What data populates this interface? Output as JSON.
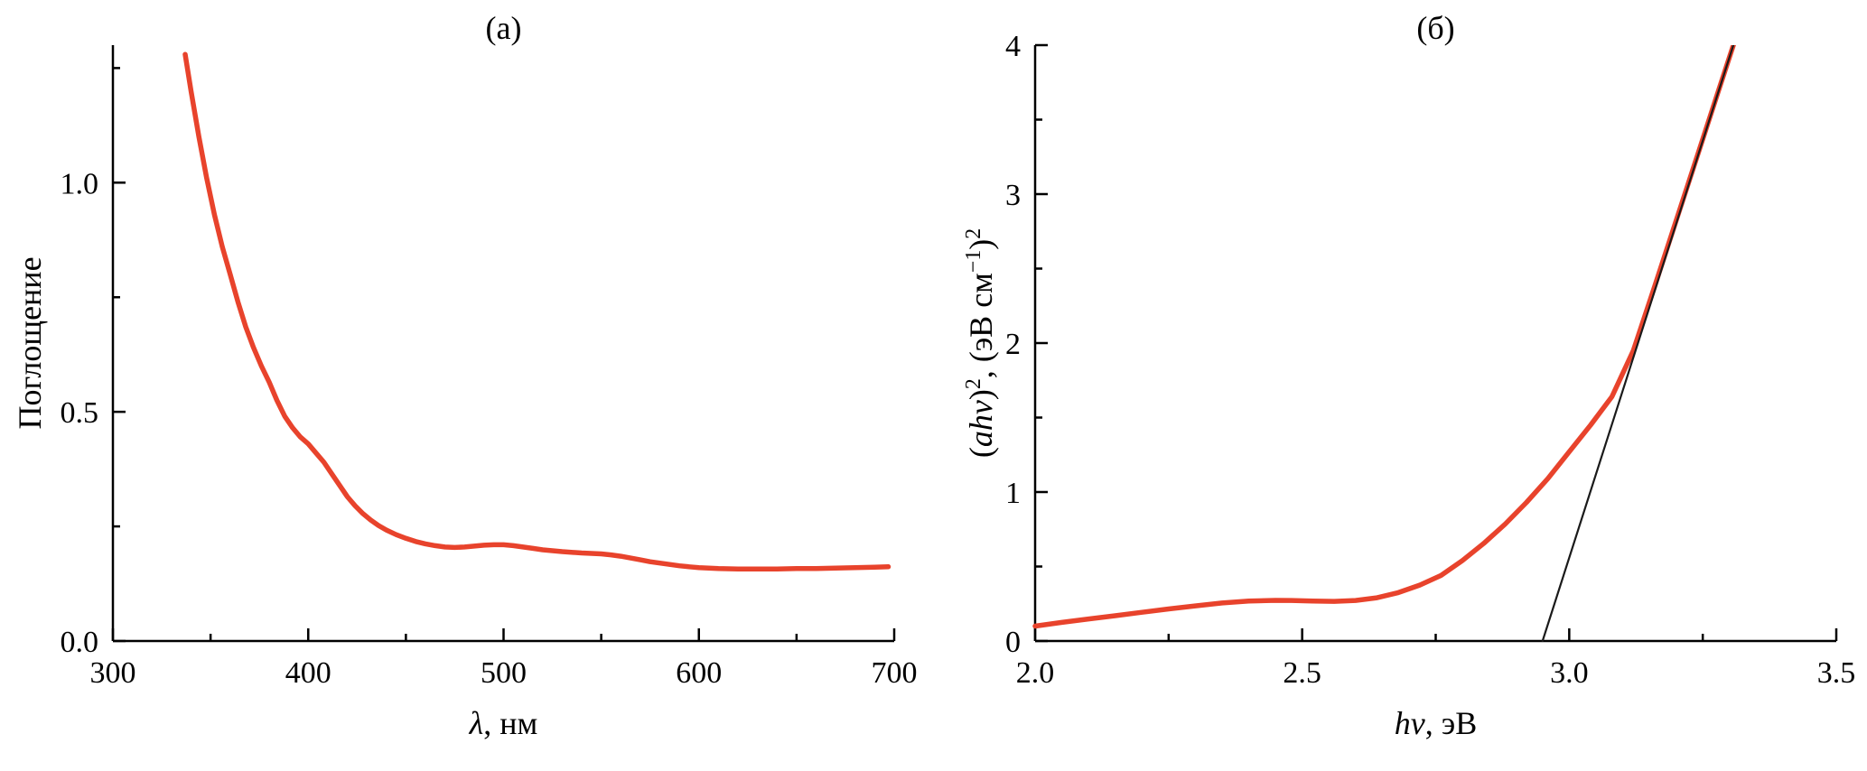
{
  "figure": {
    "background": "#ffffff",
    "axis_color": "#000000",
    "accent_red": "#e8432c"
  },
  "chart_data": [
    {
      "type": "line",
      "panel_label": "(а)",
      "xlabel_segments": [
        {
          "text": "λ",
          "style": "italic"
        },
        {
          "text": ", нм",
          "style": "normal"
        }
      ],
      "ylabel_segments": [
        {
          "text": "Поглощение",
          "style": "normal"
        }
      ],
      "xlim": [
        300,
        700
      ],
      "ylim": [
        0,
        1.3
      ],
      "xticks": [
        {
          "v": 300,
          "label": "300"
        },
        {
          "v": 400,
          "label": "400"
        },
        {
          "v": 500,
          "label": "500"
        },
        {
          "v": 600,
          "label": "600"
        },
        {
          "v": 700,
          "label": "700"
        }
      ],
      "yticks": [
        {
          "v": 0,
          "label": "0.0"
        },
        {
          "v": 0.5,
          "label": "0.5"
        },
        {
          "v": 1,
          "label": "1.0"
        }
      ],
      "xminor": [
        350,
        450,
        550,
        650
      ],
      "yminor": [
        0.25,
        0.75,
        1.25
      ],
      "grid": false,
      "legend": null,
      "series": [
        {
          "name": "absorption-spectrum",
          "color": "#e8432c",
          "width": 5.5,
          "points": [
            [
              337,
              1.28
            ],
            [
              340,
              1.2
            ],
            [
              344,
              1.1
            ],
            [
              348,
              1.01
            ],
            [
              352,
              0.93
            ],
            [
              356,
              0.86
            ],
            [
              360,
              0.8
            ],
            [
              364,
              0.74
            ],
            [
              368,
              0.685
            ],
            [
              372,
              0.64
            ],
            [
              376,
              0.6
            ],
            [
              380,
              0.565
            ],
            [
              384,
              0.525
            ],
            [
              388,
              0.49
            ],
            [
              392,
              0.465
            ],
            [
              396,
              0.445
            ],
            [
              400,
              0.43
            ],
            [
              404,
              0.41
            ],
            [
              408,
              0.39
            ],
            [
              412,
              0.365
            ],
            [
              416,
              0.34
            ],
            [
              420,
              0.315
            ],
            [
              424,
              0.295
            ],
            [
              428,
              0.278
            ],
            [
              432,
              0.264
            ],
            [
              436,
              0.252
            ],
            [
              440,
              0.242
            ],
            [
              445,
              0.232
            ],
            [
              450,
              0.224
            ],
            [
              455,
              0.217
            ],
            [
              460,
              0.212
            ],
            [
              465,
              0.208
            ],
            [
              470,
              0.205
            ],
            [
              475,
              0.204
            ],
            [
              480,
              0.205
            ],
            [
              485,
              0.207
            ],
            [
              490,
              0.209
            ],
            [
              495,
              0.21
            ],
            [
              500,
              0.21
            ],
            [
              505,
              0.208
            ],
            [
              510,
              0.205
            ],
            [
              515,
              0.202
            ],
            [
              520,
              0.199
            ],
            [
              530,
              0.195
            ],
            [
              540,
              0.192
            ],
            [
              550,
              0.19
            ],
            [
              555,
              0.188
            ],
            [
              560,
              0.185
            ],
            [
              565,
              0.181
            ],
            [
              570,
              0.177
            ],
            [
              575,
              0.173
            ],
            [
              580,
              0.17
            ],
            [
              585,
              0.167
            ],
            [
              590,
              0.164
            ],
            [
              595,
              0.162
            ],
            [
              600,
              0.16
            ],
            [
              610,
              0.158
            ],
            [
              620,
              0.157
            ],
            [
              630,
              0.157
            ],
            [
              640,
              0.157
            ],
            [
              650,
              0.158
            ],
            [
              660,
              0.158
            ],
            [
              670,
              0.159
            ],
            [
              680,
              0.16
            ],
            [
              690,
              0.161
            ],
            [
              697,
              0.162
            ]
          ]
        }
      ]
    },
    {
      "type": "line",
      "panel_label": "(б)",
      "xlabel_segments": [
        {
          "text": "hν",
          "style": "italic"
        },
        {
          "text": ", эВ",
          "style": "normal"
        }
      ],
      "ylabel_segments": [
        {
          "text": "(",
          "style": "normal"
        },
        {
          "text": "ahν",
          "style": "italic"
        },
        {
          "text": ")",
          "style": "normal"
        },
        {
          "text": "2",
          "style": "sup"
        },
        {
          "text": ", (эВ см",
          "style": "normal"
        },
        {
          "text": "−1",
          "style": "sup"
        },
        {
          "text": ")",
          "style": "normal"
        },
        {
          "text": "2",
          "style": "sup"
        }
      ],
      "xlim": [
        2.0,
        3.5
      ],
      "ylim": [
        0,
        4
      ],
      "xticks": [
        {
          "v": 2.0,
          "label": "2.0"
        },
        {
          "v": 2.5,
          "label": "2.5"
        },
        {
          "v": 3.0,
          "label": "3.0"
        },
        {
          "v": 3.5,
          "label": "3.5"
        }
      ],
      "yticks": [
        {
          "v": 0,
          "label": "0"
        },
        {
          "v": 1,
          "label": "1"
        },
        {
          "v": 2,
          "label": "2"
        },
        {
          "v": 3,
          "label": "3"
        },
        {
          "v": 4,
          "label": "4"
        }
      ],
      "xminor": [
        2.25,
        2.75,
        3.25
      ],
      "yminor": [
        0.5,
        1.5,
        2.5,
        3.5
      ],
      "grid": false,
      "legend": null,
      "series": [
        {
          "name": "tauc-curve",
          "color": "#e8432c",
          "width": 5.5,
          "points": [
            [
              2.0,
              0.1
            ],
            [
              2.05,
              0.125
            ],
            [
              2.1,
              0.148
            ],
            [
              2.15,
              0.17
            ],
            [
              2.2,
              0.193
            ],
            [
              2.25,
              0.215
            ],
            [
              2.3,
              0.236
            ],
            [
              2.35,
              0.255
            ],
            [
              2.4,
              0.268
            ],
            [
              2.45,
              0.273
            ],
            [
              2.48,
              0.272
            ],
            [
              2.52,
              0.268
            ],
            [
              2.56,
              0.266
            ],
            [
              2.6,
              0.272
            ],
            [
              2.64,
              0.29
            ],
            [
              2.68,
              0.325
            ],
            [
              2.72,
              0.375
            ],
            [
              2.76,
              0.44
            ],
            [
              2.8,
              0.54
            ],
            [
              2.84,
              0.655
            ],
            [
              2.88,
              0.785
            ],
            [
              2.92,
              0.93
            ],
            [
              2.96,
              1.09
            ],
            [
              3.0,
              1.27
            ],
            [
              3.04,
              1.45
            ],
            [
              3.08,
              1.64
            ],
            [
              3.12,
              1.95
            ],
            [
              3.16,
              2.38
            ],
            [
              3.2,
              2.82
            ],
            [
              3.24,
              3.26
            ],
            [
              3.28,
              3.7
            ],
            [
              3.32,
              4.14
            ],
            [
              3.34,
              4.36
            ]
          ]
        },
        {
          "name": "tangent-line",
          "color": "#1a1a1a",
          "width": 2.2,
          "points": [
            [
              2.95,
              0
            ],
            [
              3.335,
              4.31
            ]
          ]
        }
      ]
    }
  ]
}
